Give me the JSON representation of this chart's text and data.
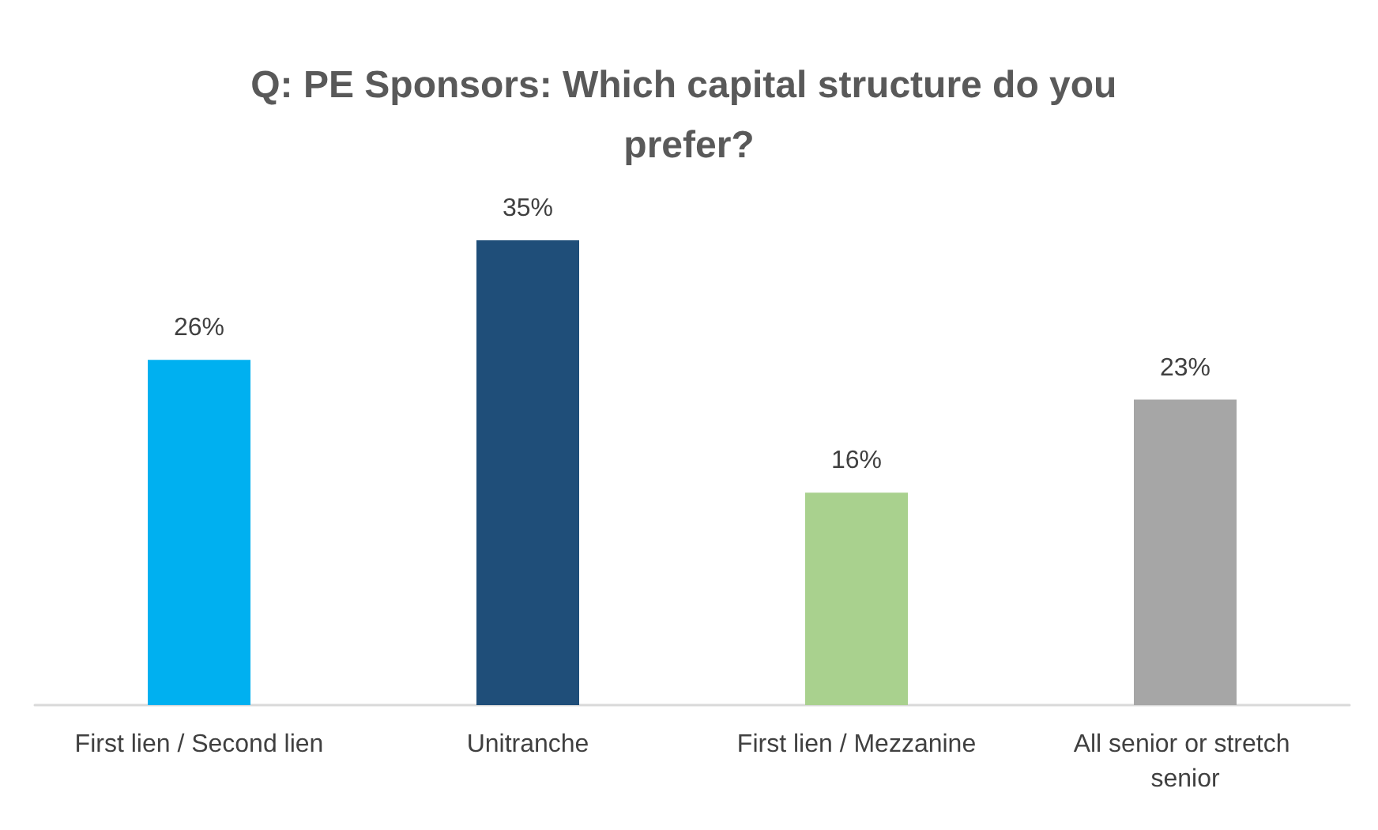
{
  "chart_data": {
    "type": "bar",
    "title": "Q: PE Sponsors: Which capital structure do you prefer?",
    "categories": [
      "First lien / Second lien",
      "Unitranche",
      "First lien / Mezzanine",
      "All senior or stretch senior"
    ],
    "values": [
      26,
      35,
      16,
      23
    ],
    "colors": [
      "#00b0f0",
      "#1f4e79",
      "#a9d18e",
      "#a6a6a6"
    ],
    "value_labels": [
      "26%",
      "35%",
      "16%",
      "23%"
    ],
    "grid": false,
    "tick_labels": "x"
  }
}
